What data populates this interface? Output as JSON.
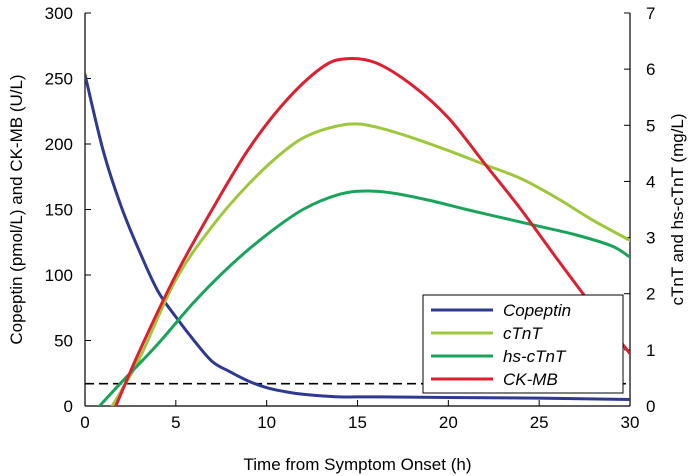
{
  "chart_data": {
    "type": "line",
    "title": "",
    "xlabel": "Time from Symptom Onset (h)",
    "ylabel_left": "Copeptin (pmol/L) and CK-MB (U/L)",
    "ylabel_right": "cTnT and hs-cTnT (mg/L)",
    "xlim": [
      0,
      30
    ],
    "ylim_left": [
      0,
      300
    ],
    "ylim_right": [
      0,
      7
    ],
    "x_ticks": [
      "0",
      "5",
      "10",
      "15",
      "20",
      "25",
      "30"
    ],
    "y_ticks_left": [
      "0",
      "50",
      "100",
      "150",
      "200",
      "250",
      "300"
    ],
    "y_ticks_right": [
      "0",
      "1",
      "2",
      "3",
      "4",
      "5",
      "6",
      "7"
    ],
    "grid": false,
    "legend_position": "center-right",
    "reference_line": {
      "style": "dashed",
      "axis": "left",
      "y": 17,
      "color": "#000000"
    },
    "series": [
      {
        "name": "Copeptin",
        "axis": "left",
        "color": "#2e3a92",
        "points": [
          [
            0,
            253
          ],
          [
            1,
            195
          ],
          [
            2,
            152
          ],
          [
            3,
            118
          ],
          [
            4,
            88
          ],
          [
            5,
            68
          ],
          [
            6,
            50
          ],
          [
            7,
            34
          ],
          [
            8,
            26
          ],
          [
            9,
            19
          ],
          [
            10,
            14
          ],
          [
            11,
            11
          ],
          [
            12,
            9
          ],
          [
            14,
            7
          ],
          [
            16,
            7
          ],
          [
            20,
            6.5
          ],
          [
            25,
            6
          ],
          [
            30,
            5
          ]
        ]
      },
      {
        "name": "cTnT",
        "axis": "right",
        "color": "#9dc83c",
        "points": [
          [
            1.5,
            0
          ],
          [
            3,
            0.85
          ],
          [
            5,
            2.25
          ],
          [
            7,
            3.2
          ],
          [
            9,
            3.95
          ],
          [
            11,
            4.55
          ],
          [
            12.5,
            4.85
          ],
          [
            14.5,
            5.02
          ],
          [
            16,
            4.97
          ],
          [
            18,
            4.78
          ],
          [
            20,
            4.55
          ],
          [
            22,
            4.3
          ],
          [
            24,
            4.05
          ],
          [
            26,
            3.7
          ],
          [
            28,
            3.3
          ],
          [
            30,
            2.95
          ]
        ]
      },
      {
        "name": "hs-cTnT",
        "axis": "right",
        "color": "#1aa35a",
        "points": [
          [
            0.8,
            0
          ],
          [
            2,
            0.42
          ],
          [
            4,
            1.1
          ],
          [
            6,
            1.85
          ],
          [
            8,
            2.5
          ],
          [
            10,
            3.05
          ],
          [
            12,
            3.5
          ],
          [
            14,
            3.77
          ],
          [
            15.5,
            3.83
          ],
          [
            17,
            3.79
          ],
          [
            19,
            3.66
          ],
          [
            21,
            3.5
          ],
          [
            23,
            3.35
          ],
          [
            25,
            3.2
          ],
          [
            27,
            3.05
          ],
          [
            29,
            2.85
          ],
          [
            30,
            2.65
          ]
        ]
      },
      {
        "name": "CK-MB",
        "axis": "left",
        "color": "#dd1f30",
        "points": [
          [
            1.7,
            0
          ],
          [
            3,
            42
          ],
          [
            5,
            100
          ],
          [
            7,
            150
          ],
          [
            9,
            196
          ],
          [
            11,
            232
          ],
          [
            13,
            258
          ],
          [
            14.3,
            265
          ],
          [
            16,
            262
          ],
          [
            18,
            245
          ],
          [
            20,
            220
          ],
          [
            22,
            185
          ],
          [
            24,
            150
          ],
          [
            26,
            112
          ],
          [
            28,
            75
          ],
          [
            30,
            40
          ]
        ]
      }
    ]
  }
}
